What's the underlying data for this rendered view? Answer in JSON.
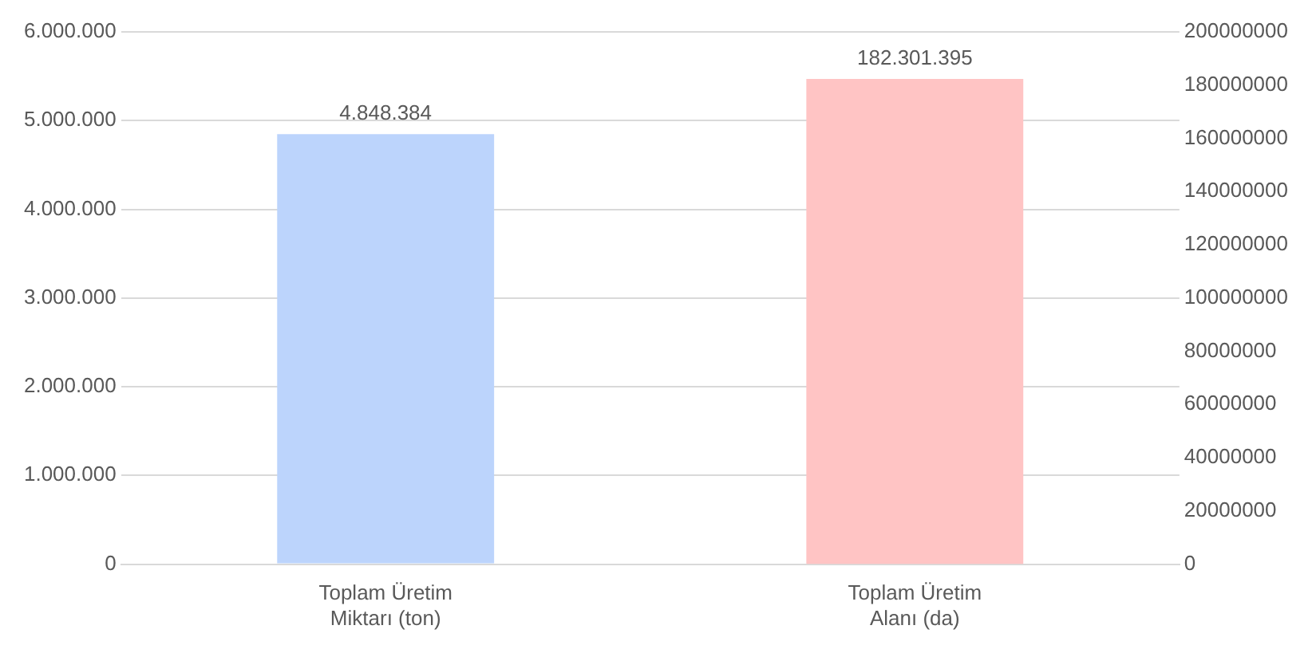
{
  "chart_data": {
    "type": "bar",
    "categories": [
      "Toplam Üretim Miktarı (ton)",
      "Toplam Üretim Alanı (da)"
    ],
    "series": [
      {
        "color": "#bcd4fc",
        "values": [
          4848384,
          null
        ],
        "value_labels": [
          "4.848.384",
          null
        ]
      },
      {
        "color": "#ffc4c4",
        "values": [
          null,
          182301395
        ],
        "value_labels": [
          null,
          "182.301.395"
        ],
        "axis": "y2"
      }
    ],
    "ylim": [
      0,
      6000000
    ],
    "yticks": [
      {
        "value": 0,
        "label": "0"
      },
      {
        "value": 1000000,
        "label": "1.000.000"
      },
      {
        "value": 2000000,
        "label": "2.000.000"
      },
      {
        "value": 3000000,
        "label": "3.000.000"
      },
      {
        "value": 4000000,
        "label": "4.000.000"
      },
      {
        "value": 5000000,
        "label": "5.000.000"
      },
      {
        "value": 6000000,
        "label": "6.000.000"
      }
    ],
    "y2lim": [
      0,
      200000000
    ],
    "y2ticks": [
      0,
      20000000,
      40000000,
      60000000,
      80000000,
      100000000,
      120000000,
      140000000,
      160000000,
      180000000,
      200000000
    ],
    "grid": "y",
    "legend": false
  }
}
